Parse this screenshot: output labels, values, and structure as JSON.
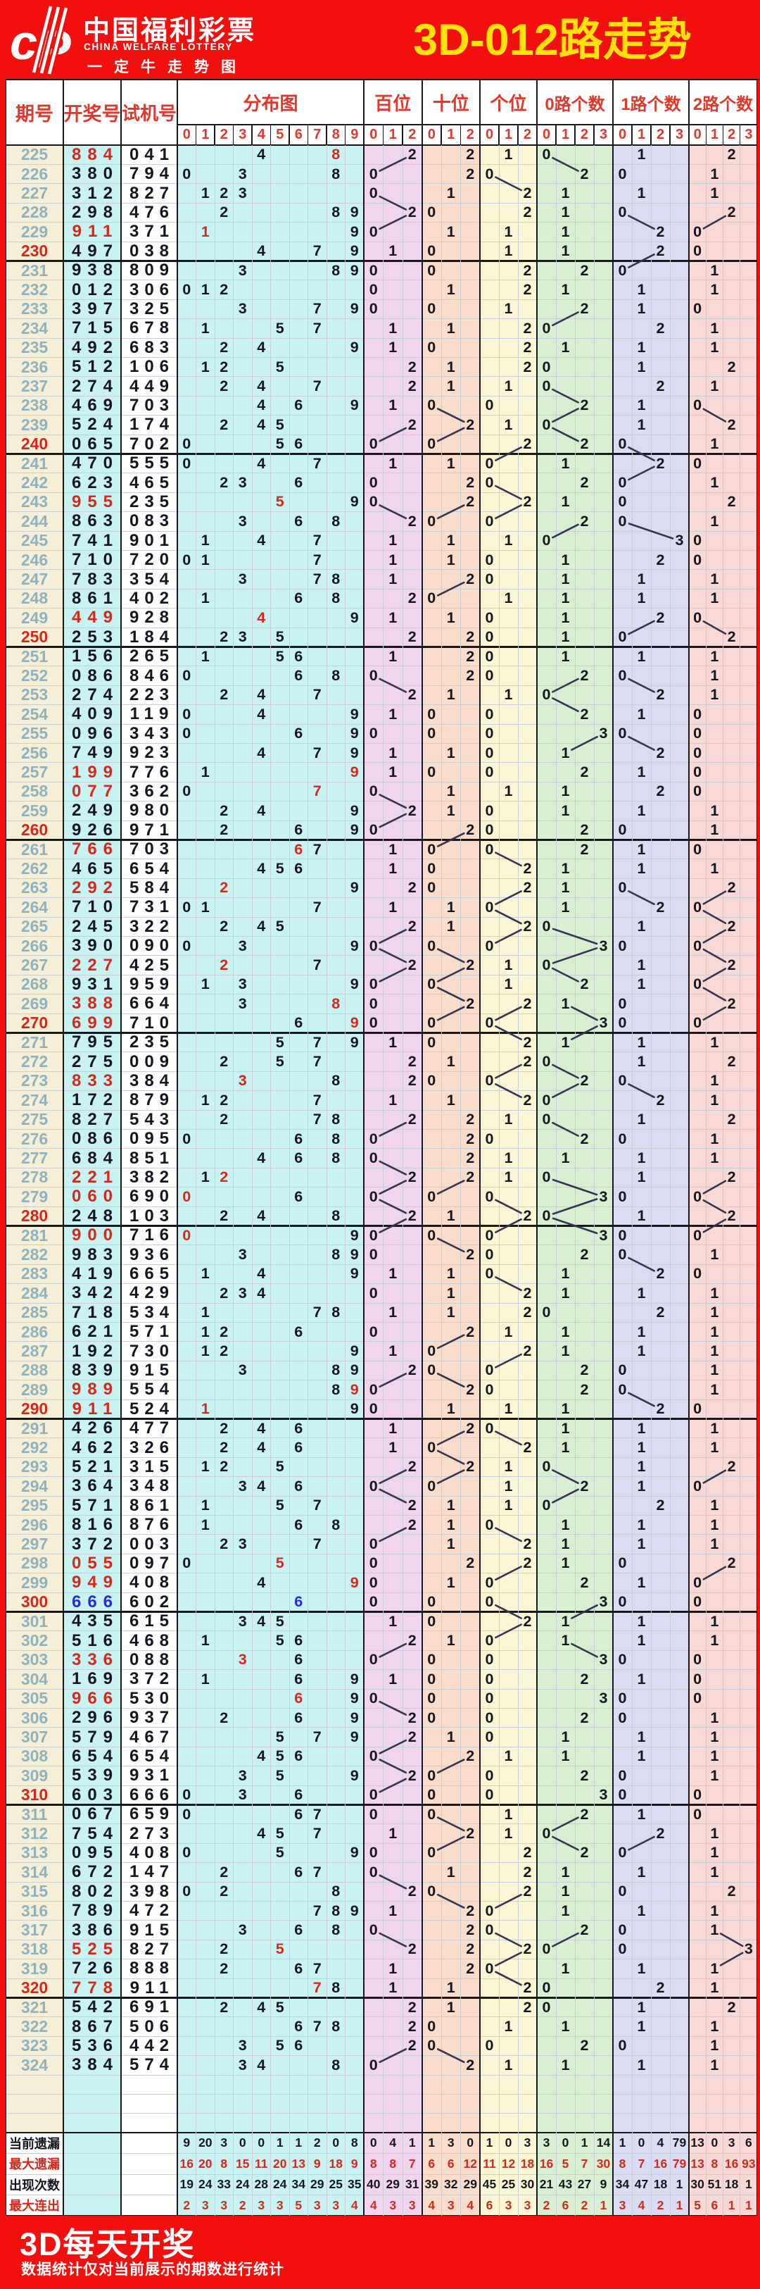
{
  "banner": {
    "brand_cn": "中国福利彩票",
    "brand_en": "CHINA WELFARE LOTTERY",
    "brand_sub": "一定牛走势图",
    "title": "3D-012路走势"
  },
  "header": {
    "issue": "期号",
    "win": "开奖号",
    "test": "试机号",
    "sections": [
      {
        "key": "dist",
        "label": "分布图",
        "ticks": [
          "0",
          "1",
          "2",
          "3",
          "4",
          "5",
          "6",
          "7",
          "8",
          "9"
        ]
      },
      {
        "key": "bai",
        "label": "百位",
        "ticks": [
          "0",
          "1",
          "2"
        ]
      },
      {
        "key": "shi",
        "label": "十位",
        "ticks": [
          "0",
          "1",
          "2"
        ]
      },
      {
        "key": "ge",
        "label": "个位",
        "ticks": [
          "0",
          "1",
          "2"
        ]
      },
      {
        "key": "lu0",
        "label": "0路个数",
        "ticks": [
          "0",
          "1",
          "2",
          "3"
        ]
      },
      {
        "key": "lu1",
        "label": "1路个数",
        "ticks": [
          "0",
          "1",
          "2",
          "3"
        ]
      },
      {
        "key": "lu2",
        "label": "2路个数",
        "ticks": [
          "0",
          "1",
          "2",
          "3"
        ]
      }
    ]
  },
  "chart_data": {
    "type": "table",
    "title": "3D-012路走势",
    "rows": [
      {
        "issue": "225",
        "win": "884",
        "test": "041"
      },
      {
        "issue": "226",
        "win": "380",
        "test": "794"
      },
      {
        "issue": "227",
        "win": "312",
        "test": "827"
      },
      {
        "issue": "228",
        "win": "298",
        "test": "476"
      },
      {
        "issue": "229",
        "win": "911",
        "test": "371"
      },
      {
        "issue": "230",
        "win": "497",
        "test": "038"
      },
      {
        "issue": "231",
        "win": "938",
        "test": "809"
      },
      {
        "issue": "232",
        "win": "012",
        "test": "306"
      },
      {
        "issue": "233",
        "win": "397",
        "test": "325"
      },
      {
        "issue": "234",
        "win": "715",
        "test": "678"
      },
      {
        "issue": "235",
        "win": "492",
        "test": "683"
      },
      {
        "issue": "236",
        "win": "512",
        "test": "106"
      },
      {
        "issue": "237",
        "win": "274",
        "test": "449"
      },
      {
        "issue": "238",
        "win": "469",
        "test": "703"
      },
      {
        "issue": "239",
        "win": "524",
        "test": "174"
      },
      {
        "issue": "240",
        "win": "065",
        "test": "702"
      },
      {
        "issue": "241",
        "win": "470",
        "test": "555"
      },
      {
        "issue": "242",
        "win": "623",
        "test": "465"
      },
      {
        "issue": "243",
        "win": "955",
        "test": "235"
      },
      {
        "issue": "244",
        "win": "863",
        "test": "083"
      },
      {
        "issue": "245",
        "win": "741",
        "test": "901"
      },
      {
        "issue": "246",
        "win": "710",
        "test": "720"
      },
      {
        "issue": "247",
        "win": "783",
        "test": "354"
      },
      {
        "issue": "248",
        "win": "861",
        "test": "402"
      },
      {
        "issue": "249",
        "win": "449",
        "test": "928"
      },
      {
        "issue": "250",
        "win": "253",
        "test": "184"
      },
      {
        "issue": "251",
        "win": "156",
        "test": "265"
      },
      {
        "issue": "252",
        "win": "086",
        "test": "846"
      },
      {
        "issue": "253",
        "win": "274",
        "test": "223"
      },
      {
        "issue": "254",
        "win": "409",
        "test": "119"
      },
      {
        "issue": "255",
        "win": "096",
        "test": "343"
      },
      {
        "issue": "256",
        "win": "749",
        "test": "923"
      },
      {
        "issue": "257",
        "win": "199",
        "test": "776"
      },
      {
        "issue": "258",
        "win": "077",
        "test": "362"
      },
      {
        "issue": "259",
        "win": "249",
        "test": "980"
      },
      {
        "issue": "260",
        "win": "926",
        "test": "971"
      },
      {
        "issue": "261",
        "win": "766",
        "test": "703"
      },
      {
        "issue": "262",
        "win": "465",
        "test": "654"
      },
      {
        "issue": "263",
        "win": "292",
        "test": "584"
      },
      {
        "issue": "264",
        "win": "710",
        "test": "731"
      },
      {
        "issue": "265",
        "win": "245",
        "test": "322"
      },
      {
        "issue": "266",
        "win": "390",
        "test": "090"
      },
      {
        "issue": "267",
        "win": "227",
        "test": "425"
      },
      {
        "issue": "268",
        "win": "931",
        "test": "959"
      },
      {
        "issue": "269",
        "win": "388",
        "test": "664"
      },
      {
        "issue": "270",
        "win": "699",
        "test": "710"
      },
      {
        "issue": "271",
        "win": "795",
        "test": "235"
      },
      {
        "issue": "272",
        "win": "275",
        "test": "009"
      },
      {
        "issue": "273",
        "win": "833",
        "test": "384"
      },
      {
        "issue": "274",
        "win": "172",
        "test": "879"
      },
      {
        "issue": "275",
        "win": "827",
        "test": "543"
      },
      {
        "issue": "276",
        "win": "086",
        "test": "095"
      },
      {
        "issue": "277",
        "win": "684",
        "test": "851"
      },
      {
        "issue": "278",
        "win": "221",
        "test": "382"
      },
      {
        "issue": "279",
        "win": "060",
        "test": "690"
      },
      {
        "issue": "280",
        "win": "248",
        "test": "103"
      },
      {
        "issue": "281",
        "win": "900",
        "test": "716"
      },
      {
        "issue": "282",
        "win": "983",
        "test": "936"
      },
      {
        "issue": "283",
        "win": "419",
        "test": "665"
      },
      {
        "issue": "284",
        "win": "342",
        "test": "429"
      },
      {
        "issue": "285",
        "win": "718",
        "test": "534"
      },
      {
        "issue": "286",
        "win": "621",
        "test": "571"
      },
      {
        "issue": "287",
        "win": "192",
        "test": "730"
      },
      {
        "issue": "288",
        "win": "839",
        "test": "915"
      },
      {
        "issue": "289",
        "win": "989",
        "test": "554"
      },
      {
        "issue": "290",
        "win": "911",
        "test": "524"
      },
      {
        "issue": "291",
        "win": "426",
        "test": "477"
      },
      {
        "issue": "292",
        "win": "462",
        "test": "326"
      },
      {
        "issue": "293",
        "win": "521",
        "test": "315"
      },
      {
        "issue": "294",
        "win": "364",
        "test": "348"
      },
      {
        "issue": "295",
        "win": "571",
        "test": "861"
      },
      {
        "issue": "296",
        "win": "816",
        "test": "876"
      },
      {
        "issue": "297",
        "win": "372",
        "test": "003"
      },
      {
        "issue": "298",
        "win": "055",
        "test": "097"
      },
      {
        "issue": "299",
        "win": "949",
        "test": "408"
      },
      {
        "issue": "300",
        "win": "666",
        "test": "602"
      },
      {
        "issue": "301",
        "win": "435",
        "test": "615"
      },
      {
        "issue": "302",
        "win": "516",
        "test": "468"
      },
      {
        "issue": "303",
        "win": "336",
        "test": "088"
      },
      {
        "issue": "304",
        "win": "169",
        "test": "372"
      },
      {
        "issue": "305",
        "win": "966",
        "test": "530"
      },
      {
        "issue": "306",
        "win": "296",
        "test": "937"
      },
      {
        "issue": "307",
        "win": "579",
        "test": "467"
      },
      {
        "issue": "308",
        "win": "654",
        "test": "654"
      },
      {
        "issue": "309",
        "win": "539",
        "test": "931"
      },
      {
        "issue": "310",
        "win": "603",
        "test": "666"
      },
      {
        "issue": "311",
        "win": "067",
        "test": "659"
      },
      {
        "issue": "312",
        "win": "754",
        "test": "273"
      },
      {
        "issue": "313",
        "win": "095",
        "test": "408"
      },
      {
        "issue": "314",
        "win": "672",
        "test": "147"
      },
      {
        "issue": "315",
        "win": "802",
        "test": "398"
      },
      {
        "issue": "316",
        "win": "789",
        "test": "472"
      },
      {
        "issue": "317",
        "win": "386",
        "test": "915"
      },
      {
        "issue": "318",
        "win": "525",
        "test": "827"
      },
      {
        "issue": "319",
        "win": "726",
        "test": "888"
      },
      {
        "issue": "320",
        "win": "778",
        "test": "911"
      },
      {
        "issue": "321",
        "win": "542",
        "test": "691"
      },
      {
        "issue": "322",
        "win": "867",
        "test": "506"
      },
      {
        "issue": "323",
        "win": "536",
        "test": "442"
      },
      {
        "issue": "324",
        "win": "384",
        "test": "574"
      }
    ],
    "footer": {
      "rows": [
        {
          "label": "当前遗漏",
          "emph": false,
          "dist": [
            9,
            20,
            3,
            0,
            0,
            1,
            1,
            2,
            0,
            8
          ],
          "bai": [
            0,
            4,
            1
          ],
          "shi": [
            1,
            3,
            0
          ],
          "ge": [
            1,
            0,
            3
          ],
          "lu0": [
            3,
            0,
            1,
            14
          ],
          "lu1": [
            1,
            0,
            4,
            79
          ],
          "lu2": [
            13,
            0,
            3,
            6
          ]
        },
        {
          "label": "最大遗漏",
          "emph": true,
          "dist": [
            16,
            20,
            8,
            15,
            11,
            20,
            13,
            9,
            18,
            9
          ],
          "bai": [
            8,
            8,
            7
          ],
          "shi": [
            6,
            6,
            12
          ],
          "ge": [
            11,
            12,
            18
          ],
          "lu0": [
            16,
            5,
            7,
            30
          ],
          "lu1": [
            8,
            7,
            16,
            79
          ],
          "lu2": [
            13,
            8,
            16,
            93
          ]
        },
        {
          "label": "出现次数",
          "emph": false,
          "dist": [
            19,
            24,
            33,
            24,
            28,
            24,
            34,
            29,
            25,
            35
          ],
          "bai": [
            40,
            29,
            31
          ],
          "shi": [
            39,
            32,
            29
          ],
          "ge": [
            45,
            25,
            30
          ],
          "lu0": [
            21,
            43,
            27,
            9
          ],
          "lu1": [
            34,
            47,
            18,
            1
          ],
          "lu2": [
            30,
            51,
            18,
            1
          ]
        },
        {
          "label": "最大连出",
          "emph": true,
          "dist": [
            2,
            3,
            3,
            2,
            3,
            3,
            5,
            3,
            3,
            4
          ],
          "bai": [
            4,
            3,
            3
          ],
          "shi": [
            4,
            3,
            4
          ],
          "ge": [
            6,
            3,
            3
          ],
          "lu0": [
            2,
            6,
            2,
            1
          ],
          "lu1": [
            3,
            4,
            2,
            1
          ],
          "lu2": [
            5,
            6,
            1,
            1
          ]
        }
      ]
    }
  },
  "bottom_banner": {
    "title": "3D每天开奖",
    "note": "数据统计仅对当前展示的期数进行统计"
  },
  "colors": {
    "banner_red": "#f2100e",
    "title_yellow": "#ffe10a",
    "header_red": "#e0392c",
    "issue_teal": "#8fb2bd",
    "highlight_red": "#d5281c",
    "triple_blue": "#2929d8",
    "text_dark": "#15151f",
    "trend_line": "#353552",
    "grid_gray": "#c9ced4",
    "border_black": "#17171c",
    "bg_issue": "#f6efd8",
    "bg_cyan": "#c9f3f2",
    "bg_bai": "#f1d5ee",
    "bg_shi": "#f9dcc9",
    "bg_ge": "#fbf6d3",
    "bg_lu0": "#d9efd1",
    "bg_lu1": "#dadcf4",
    "bg_lu2": "#f9d9d6"
  }
}
